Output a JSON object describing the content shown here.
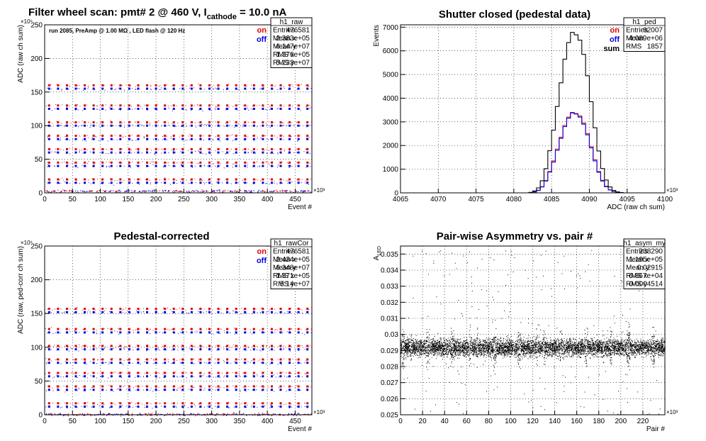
{
  "figure": {
    "main_title": "Filter wheel scan: pmt#   2 @   460 V, I",
    "main_title_sub": "cathode",
    "main_title_tail": "   = 10.0 nA"
  },
  "chart_data": [
    {
      "id": "raw",
      "type": "scatter",
      "title": "",
      "xlabel": "Event #",
      "ylabel": "ADC (raw ch sum)",
      "x_exponent": "×10³",
      "y_exponent": "×10⁶",
      "xlim": [
        0,
        480
      ],
      "ylim": [
        0,
        250
      ],
      "xticks": [
        0,
        50,
        100,
        150,
        200,
        250,
        300,
        350,
        400,
        450
      ],
      "yticks": [
        0,
        50,
        100,
        150,
        200,
        250
      ],
      "grid": true,
      "legend": {
        "position": "top-right",
        "entries": [
          {
            "label": "on",
            "color": "#e00000"
          },
          {
            "label": "off",
            "color": "#0000e0"
          }
        ]
      },
      "annotation": "run 2085, PreAmp @ 1.00 MΩ , LED flash @  120 Hz",
      "stats": {
        "name": "h1_raw",
        "rows": [
          [
            "Entries",
            "476581"
          ],
          [
            "Mean x",
            "2.383e+05"
          ],
          [
            "Mean y",
            "6.147e+07"
          ],
          [
            "RMS x",
            "1.376e+05"
          ],
          [
            "RMS y",
            "5.233e+07"
          ]
        ]
      },
      "levels": [
        160,
        155,
        130,
        125,
        105,
        100,
        85,
        80,
        65,
        60,
        45,
        40,
        20,
        15
      ],
      "level_period": 16,
      "baseline": 3
    },
    {
      "id": "ped",
      "type": "line",
      "title": "Shutter closed (pedestal data)",
      "xlabel": "ADC (raw ch sum)",
      "ylabel": "Events",
      "x_exponent": "×10³",
      "xlim": [
        4065,
        4100
      ],
      "ylim": [
        0,
        7100
      ],
      "xticks": [
        4065,
        4070,
        4075,
        4080,
        4085,
        4090,
        4095,
        4100
      ],
      "yticks": [
        0,
        1000,
        2000,
        3000,
        4000,
        5000,
        6000,
        7000
      ],
      "grid": true,
      "legend": {
        "position": "top-right",
        "entries": [
          {
            "label": "on",
            "color": "#e00000"
          },
          {
            "label": "off",
            "color": "#0000e0"
          },
          {
            "label": "sum",
            "color": "#000000"
          }
        ]
      },
      "stats": {
        "name": "h1_ped",
        "rows": [
          [
            "Entries",
            "92007"
          ],
          [
            "Mean",
            "4.089e+06"
          ],
          [
            "RMS",
            "1857"
          ]
        ]
      },
      "x": [
        4082.0,
        4082.5,
        4083.0,
        4083.5,
        4084.0,
        4084.5,
        4085.0,
        4085.5,
        4086.0,
        4086.5,
        4087.0,
        4087.5,
        4088.0,
        4088.5,
        4089.0,
        4089.5,
        4090.0,
        4090.5,
        4091.0,
        4091.5,
        4092.0,
        4092.5,
        4093.0,
        4093.5,
        4094.0,
        4094.5
      ],
      "series": [
        {
          "name": "on",
          "color": "#e00000",
          "values": [
            10,
            40,
            110,
            260,
            520,
            900,
            1350,
            1850,
            2350,
            2850,
            3200,
            3400,
            3350,
            3250,
            2950,
            2500,
            1950,
            1400,
            900,
            530,
            280,
            130,
            55,
            20,
            6,
            0
          ]
        },
        {
          "name": "off",
          "color": "#0000e0",
          "values": [
            10,
            40,
            100,
            250,
            500,
            880,
            1300,
            1800,
            2300,
            2800,
            3150,
            3380,
            3330,
            3200,
            2900,
            2450,
            1900,
            1350,
            870,
            500,
            260,
            120,
            50,
            18,
            5,
            0
          ]
        },
        {
          "name": "sum",
          "color": "#000000",
          "values": [
            20,
            80,
            210,
            510,
            1020,
            1780,
            2650,
            3650,
            4650,
            5650,
            6350,
            6780,
            6680,
            6450,
            5850,
            4950,
            3850,
            2750,
            1770,
            1030,
            540,
            250,
            105,
            38,
            11,
            0
          ]
        }
      ]
    },
    {
      "id": "rawCor",
      "type": "scatter",
      "title": "Pedestal-corrected",
      "xlabel": "Event #",
      "ylabel": "ADC (raw, ped-corr ch sum)",
      "x_exponent": "×10³",
      "y_exponent": "×10⁶",
      "xlim": [
        0,
        480
      ],
      "ylim": [
        0,
        250
      ],
      "xticks": [
        0,
        50,
        100,
        150,
        200,
        250,
        300,
        350,
        400,
        450
      ],
      "yticks": [
        0,
        50,
        100,
        150,
        200,
        250
      ],
      "grid": true,
      "legend": {
        "position": "top-right",
        "entries": [
          {
            "label": "on",
            "color": "#e00000"
          },
          {
            "label": "off",
            "color": "#0000e0"
          }
        ]
      },
      "stats": {
        "name": "h1_rawCor",
        "rows": [
          [
            "Entries",
            "476581"
          ],
          [
            "Mean x",
            "2.434e+05"
          ],
          [
            "Mean y",
            "6.348e+07"
          ],
          [
            "RMS x",
            "1.371e+05"
          ],
          [
            "RMS y",
            "5.14e+07"
          ]
        ]
      },
      "levels": [
        157,
        152,
        127,
        122,
        102,
        97,
        82,
        77,
        62,
        57,
        42,
        37,
        17,
        12
      ],
      "level_period": 16,
      "baseline": 1
    },
    {
      "id": "asym",
      "type": "scatter",
      "title": "Pair-wise Asymmetry vs. pair #",
      "xlabel": "Pair #",
      "ylabel": "A",
      "ylabel_sub": "LED",
      "x_exponent": "×10³",
      "xlim": [
        0,
        240
      ],
      "ylim": [
        0.025,
        0.0355
      ],
      "xticks": [
        0,
        20,
        40,
        60,
        80,
        100,
        120,
        140,
        160,
        180,
        200,
        220
      ],
      "yticks": [
        0.025,
        0.026,
        0.027,
        0.028,
        0.029,
        0.03,
        0.031,
        0.032,
        0.033,
        0.034,
        0.035
      ],
      "grid": true,
      "stats": {
        "name": "h1_asym_my",
        "rows": [
          [
            "Entries",
            "238290"
          ],
          [
            "Mean x",
            "1.195e+05"
          ],
          [
            "Mean y",
            "0.02915"
          ],
          [
            "RMS x",
            "6.867e+04"
          ],
          [
            "RMS y",
            "0.0004514"
          ]
        ]
      },
      "center": 0.0292,
      "spread": 0.0005
    }
  ]
}
